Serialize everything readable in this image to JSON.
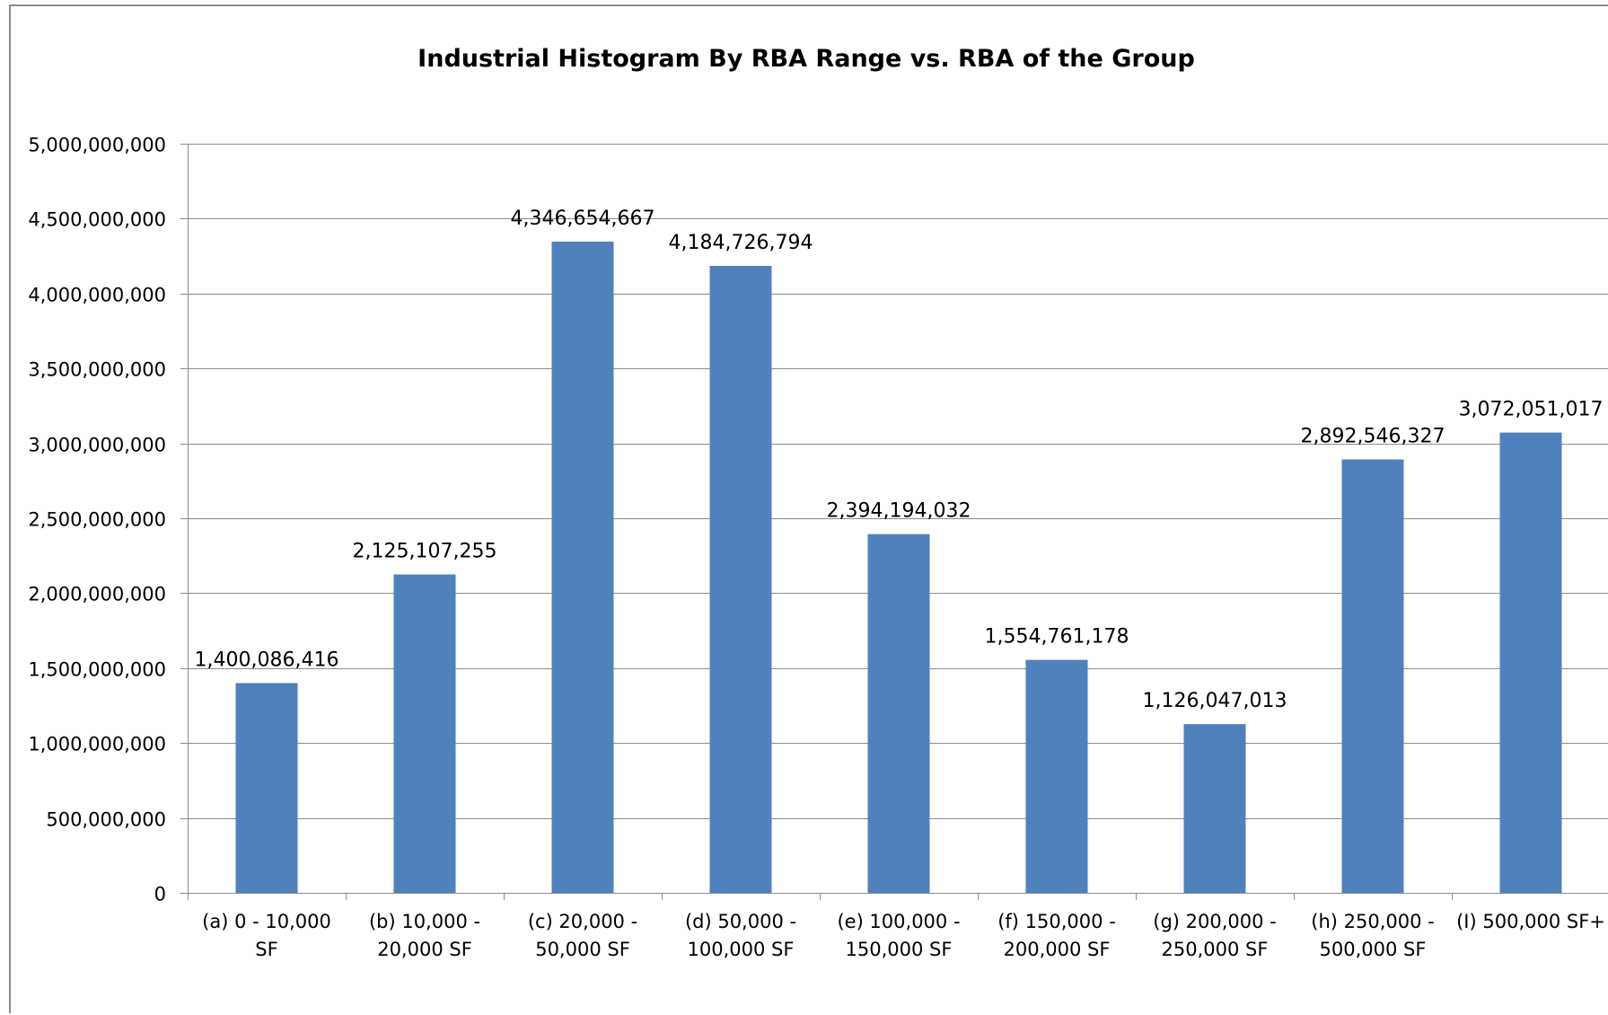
{
  "chart_data": {
    "type": "bar",
    "title": "Industrial Histogram By RBA Range vs. RBA of the Group",
    "xlabel": "",
    "ylabel": "",
    "ylim": [
      0,
      5000000000
    ],
    "yticks": [
      {
        "value": 0,
        "label": "0"
      },
      {
        "value": 500000000,
        "label": "500,000,000"
      },
      {
        "value": 1000000000,
        "label": "1,000,000,000"
      },
      {
        "value": 1500000000,
        "label": "1,500,000,000"
      },
      {
        "value": 2000000000,
        "label": "2,000,000,000"
      },
      {
        "value": 2500000000,
        "label": "2,500,000,000"
      },
      {
        "value": 3000000000,
        "label": "3,000,000,000"
      },
      {
        "value": 3500000000,
        "label": "3,500,000,000"
      },
      {
        "value": 4000000000,
        "label": "4,000,000,000"
      },
      {
        "value": 4500000000,
        "label": "4,500,000,000"
      },
      {
        "value": 5000000000,
        "label": "5,000,000,000"
      }
    ],
    "grid": true,
    "legend": "none",
    "bar_color": "#4f81bd",
    "categories": [
      [
        "(a) 0 - 10,000",
        "SF"
      ],
      [
        "(b) 10,000 -",
        "20,000 SF"
      ],
      [
        "(c) 20,000 -",
        "50,000 SF"
      ],
      [
        "(d) 50,000 -",
        "100,000 SF"
      ],
      [
        "(e) 100,000 -",
        "150,000 SF"
      ],
      [
        "(f) 150,000 -",
        "200,000 SF"
      ],
      [
        "(g) 200,000 -",
        "250,000 SF"
      ],
      [
        "(h) 250,000 -",
        "500,000 SF"
      ],
      [
        "(I) 500,000 SF+"
      ]
    ],
    "values": [
      1400086416,
      2125107255,
      4346654667,
      4184726794,
      2394194032,
      1554761178,
      1126047013,
      2892546327,
      3072051017
    ],
    "data_labels": [
      "1,400,086,416",
      "2,125,107,255",
      "4,346,654,667",
      "4,184,726,794",
      "2,394,194,032",
      "1,554,761,178",
      "1,126,047,013",
      "2,892,546,327",
      "3,072,051,017"
    ]
  }
}
